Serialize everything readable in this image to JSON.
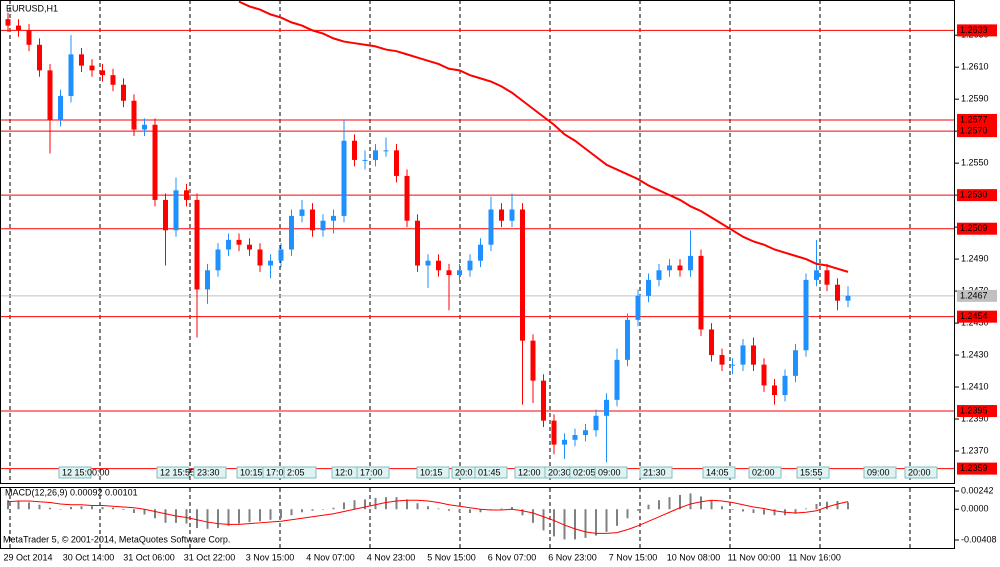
{
  "chart_data": [
    {
      "type": "candlestick",
      "title": "EURUSD,H1",
      "up_color": "#1e90ff",
      "down_color": "#ff0000",
      "ylim": [
        1.235,
        1.2652
      ],
      "yticks": [
        {
          "value": 1.237,
          "label": "1.2370"
        },
        {
          "value": 1.239,
          "label": "1.2390"
        },
        {
          "value": 1.241,
          "label": "1.2410"
        },
        {
          "value": 1.243,
          "label": "1.2430"
        },
        {
          "value": 1.245,
          "label": "1.2450"
        },
        {
          "value": 1.247,
          "label": "1.2470"
        },
        {
          "value": 1.249,
          "label": "1.2490"
        },
        {
          "value": 1.251,
          "label": "1.2510"
        },
        {
          "value": 1.253,
          "label": "1.2530"
        },
        {
          "value": 1.255,
          "label": "1.2550"
        },
        {
          "value": 1.257,
          "label": "1.2570"
        },
        {
          "value": 1.259,
          "label": "1.2590"
        },
        {
          "value": 1.261,
          "label": "1.2610"
        },
        {
          "value": 1.263,
          "label": "1.2630"
        }
      ],
      "hlines": [
        1.2633,
        1.2577,
        {
          "value": 1.257,
          "label": "1.2570"
        },
        {
          "value": 1.253,
          "label": "1.2530"
        },
        1.2509,
        1.2454,
        1.2395,
        1.2359
      ],
      "hline_color": "#ff0000",
      "last_price": 1.2467,
      "time_labels": [
        "29 Oct 2014",
        "30 Oct 14:00",
        "31 Oct 06:00",
        "31 Oct 22:00",
        "3 Nov 15:00",
        "4 Nov 07:00",
        "4 Nov 23:00",
        "5 Nov 15:00",
        "6 Nov 07:00",
        "6 Nov 23:00",
        "7 Nov 15:00",
        "10 Nov 08:00",
        "11 Nov 00:00",
        "11 Nov 16:00"
      ],
      "object_labels": [
        "12 15:00:00",
        "12 15:55",
        "23:30",
        "10:15",
        "17:00",
        "2:05",
        "12:0",
        "17:00",
        "10:15",
        "20:0",
        "01:45",
        "12:00",
        "20:30",
        "02:05",
        "09:00",
        "21:30",
        "14:05",
        "02:00",
        "15:55",
        "09:00",
        "20:00"
      ],
      "open": [
        1.264,
        1.2636,
        1.2633,
        1.2624,
        1.2608,
        1.2577,
        1.2592,
        1.2618,
        1.2611,
        1.2608,
        1.2605,
        1.2599,
        1.2589,
        1.2571,
        1.2574,
        1.2527,
        1.2508,
        1.2533,
        1.2527,
        1.2471,
        1.2483,
        1.2496,
        1.2502,
        1.2499,
        1.2496,
        1.2486,
        1.2489,
        1.2496,
        1.2517,
        1.2521,
        1.2508,
        1.2514,
        1.2517,
        1.2564,
        1.2552,
        1.2552,
        1.2558,
        1.2558,
        1.2542,
        1.2514,
        1.2486,
        1.2489,
        1.2483,
        1.248,
        1.2483,
        1.2489,
        1.2499,
        1.2521,
        1.2514,
        1.2521,
        1.2439,
        1.2414,
        1.2389,
        1.2374,
        1.2377,
        1.238,
        1.2383,
        1.2392,
        1.2402,
        1.2427,
        1.2452,
        1.2467,
        1.2477,
        1.2483,
        1.2486,
        1.2483,
        1.2492,
        1.2446,
        1.243,
        1.2424,
        1.2424,
        1.2436,
        1.2424,
        1.2411,
        1.2405,
        1.2417,
        1.2433,
        1.2477,
        1.2483,
        1.2474,
        1.2464
      ],
      "high": [
        1.2644,
        1.264,
        1.2637,
        1.2628,
        1.2612,
        1.2596,
        1.263,
        1.2622,
        1.2615,
        1.2612,
        1.2609,
        1.2603,
        1.2593,
        1.2578,
        1.2578,
        1.2531,
        1.2541,
        1.2537,
        1.2531,
        1.2487,
        1.25,
        1.2506,
        1.2506,
        1.2503,
        1.25,
        1.2493,
        1.25,
        1.2521,
        1.2527,
        1.2525,
        1.2518,
        1.2521,
        1.2577,
        1.2568,
        1.2558,
        1.2562,
        1.2566,
        1.2562,
        1.2546,
        1.2518,
        1.2493,
        1.2493,
        1.2487,
        1.2487,
        1.2493,
        1.2503,
        1.2529,
        1.2525,
        1.2531,
        1.2525,
        1.2443,
        1.2418,
        1.2393,
        1.2381,
        1.2384,
        1.2387,
        1.2396,
        1.2406,
        1.2434,
        1.2456,
        1.2471,
        1.2481,
        1.2487,
        1.249,
        1.249,
        1.2508,
        1.2496,
        1.245,
        1.2434,
        1.2428,
        1.244,
        1.2441,
        1.2428,
        1.2415,
        1.2421,
        1.2437,
        1.2481,
        1.2502,
        1.2487,
        1.2478,
        1.2473
      ],
      "low": [
        1.2632,
        1.2629,
        1.262,
        1.2604,
        1.2556,
        1.2573,
        1.2588,
        1.2607,
        1.2604,
        1.2601,
        1.2595,
        1.2585,
        1.2567,
        1.2567,
        1.2523,
        1.2486,
        1.2504,
        1.2523,
        1.2441,
        1.2462,
        1.2479,
        1.2492,
        1.2495,
        1.2492,
        1.2482,
        1.2478,
        1.2485,
        1.2492,
        1.2513,
        1.2504,
        1.2504,
        1.2506,
        1.2513,
        1.2548,
        1.2546,
        1.2548,
        1.2554,
        1.2538,
        1.251,
        1.2482,
        1.2472,
        1.2479,
        1.2458,
        1.2476,
        1.2479,
        1.2485,
        1.2495,
        1.251,
        1.251,
        1.2399,
        1.24,
        1.2385,
        1.2368,
        1.2365,
        1.2373,
        1.2376,
        1.2379,
        1.2363,
        1.2398,
        1.2423,
        1.2448,
        1.2463,
        1.2473,
        1.2479,
        1.2479,
        1.2479,
        1.2442,
        1.2426,
        1.242,
        1.2418,
        1.242,
        1.242,
        1.2407,
        1.2399,
        1.2401,
        1.2413,
        1.2429,
        1.2473,
        1.247,
        1.2458,
        1.246
      ],
      "close": [
        1.2636,
        1.2633,
        1.2624,
        1.2608,
        1.2577,
        1.2592,
        1.2618,
        1.2611,
        1.2608,
        1.2605,
        1.2599,
        1.2589,
        1.2571,
        1.2574,
        1.2527,
        1.2508,
        1.2533,
        1.2527,
        1.2471,
        1.2483,
        1.2496,
        1.2502,
        1.2499,
        1.2496,
        1.2486,
        1.2489,
        1.2496,
        1.2517,
        1.2521,
        1.2508,
        1.2514,
        1.2517,
        1.2564,
        1.2552,
        1.2552,
        1.2558,
        1.2558,
        1.2542,
        1.2514,
        1.2486,
        1.2489,
        1.2483,
        1.248,
        1.2483,
        1.2489,
        1.2499,
        1.2521,
        1.2514,
        1.2521,
        1.2439,
        1.2414,
        1.2389,
        1.2374,
        1.2377,
        1.238,
        1.2383,
        1.2392,
        1.2402,
        1.2427,
        1.2452,
        1.2467,
        1.2477,
        1.2483,
        1.2486,
        1.2483,
        1.2492,
        1.2446,
        1.243,
        1.2424,
        1.2424,
        1.2436,
        1.2424,
        1.2411,
        1.2405,
        1.2417,
        1.2433,
        1.2477,
        1.2483,
        1.2474,
        1.2464,
        1.2467
      ],
      "ma": {
        "color": "#ff0000",
        "values": [
          null,
          null,
          null,
          null,
          null,
          null,
          null,
          null,
          null,
          null,
          null,
          null,
          null,
          null,
          null,
          null,
          null,
          null,
          null,
          null,
          null,
          null,
          1.2651,
          1.2648,
          1.2646,
          1.2643,
          1.2641,
          1.2638,
          1.2636,
          1.2633,
          1.2631,
          1.2628,
          1.2626,
          1.2625,
          1.2624,
          1.2623,
          1.2621,
          1.262,
          1.2618,
          1.2616,
          1.2614,
          1.2612,
          1.2609,
          1.2608,
          1.2605,
          1.2603,
          1.2601,
          1.2598,
          1.2594,
          1.2589,
          1.2584,
          1.2579,
          1.2574,
          1.2568,
          1.2564,
          1.2559,
          1.2554,
          1.2549,
          1.2546,
          1.2543,
          1.254,
          1.2536,
          1.2533,
          1.253,
          1.2527,
          1.2523,
          1.252,
          1.2516,
          1.2512,
          1.2508,
          1.2504,
          1.2501,
          1.2499,
          1.2496,
          1.2494,
          1.2492,
          1.249,
          1.2487,
          1.2486,
          1.2484,
          1.2482
        ]
      }
    },
    {
      "type": "macd",
      "title": "MACD(12,26,9) 0.00092 0.00101",
      "ylim": [
        -0.00408,
        0.00242
      ],
      "yticks": [
        0.00242,
        {
          "value": 0,
          "label": "0.0000"
        },
        -0.00408
      ],
      "histogram_color": "#808080",
      "signal_color": "#ff0000",
      "histogram": [
        0.0012,
        0.0011,
        0.0009,
        0.0006,
        0.0002,
        0.0,
        0.0003,
        0.0004,
        0.0004,
        0.0003,
        0.0002,
        -0.0001,
        -0.0005,
        -0.0007,
        -0.0012,
        -0.0018,
        -0.0018,
        -0.0019,
        -0.0025,
        -0.0026,
        -0.0025,
        -0.0022,
        -0.0019,
        -0.0017,
        -0.0016,
        -0.0014,
        -0.0012,
        -0.0008,
        -0.0004,
        -0.0002,
        0.0,
        0.0002,
        0.0009,
        0.0012,
        0.0013,
        0.0015,
        0.0016,
        0.0016,
        0.0013,
        0.0008,
        0.0004,
        0.0001,
        -0.0002,
        -0.0004,
        -0.0005,
        -0.0004,
        -0.0001,
        0.0001,
        0.0003,
        -0.0008,
        -0.0018,
        -0.0028,
        -0.0036,
        -0.004,
        -0.004,
        -0.0038,
        -0.0035,
        -0.003,
        -0.0022,
        -0.0012,
        -0.0002,
        0.0006,
        0.0012,
        0.0016,
        0.0019,
        0.0021,
        0.0017,
        0.0011,
        0.0004,
        -0.0001,
        -0.0003,
        -0.0005,
        -0.0007,
        -0.0008,
        -0.0008,
        -0.0006,
        0.0001,
        0.0007,
        0.001,
        0.0011,
        0.00092
      ],
      "signal": [
        0.001,
        0.0011,
        0.0011,
        0.001,
        0.0009,
        0.0007,
        0.0006,
        0.0006,
        0.0005,
        0.0005,
        0.0004,
        0.0003,
        0.0002,
        0.0,
        -0.0003,
        -0.0006,
        -0.0009,
        -0.0011,
        -0.0014,
        -0.0017,
        -0.0019,
        -0.002,
        -0.002,
        -0.0019,
        -0.0018,
        -0.0017,
        -0.0016,
        -0.0014,
        -0.0012,
        -0.001,
        -0.0008,
        -0.0006,
        -0.0003,
        0.0,
        0.0003,
        0.0006,
        0.0009,
        0.0011,
        0.0012,
        0.0012,
        0.0011,
        0.0009,
        0.0006,
        0.0004,
        0.0002,
        0.0,
        -0.0001,
        -0.0001,
        0.0,
        -0.0002,
        -0.0005,
        -0.001,
        -0.0015,
        -0.0021,
        -0.0026,
        -0.003,
        -0.0032,
        -0.0032,
        -0.0031,
        -0.0027,
        -0.0022,
        -0.0016,
        -0.001,
        -0.0004,
        0.0002,
        0.0007,
        0.001,
        0.0012,
        0.0011,
        0.0009,
        0.0006,
        0.0003,
        0.0001,
        -0.0002,
        -0.0004,
        -0.0005,
        -0.0004,
        -0.0002,
        0.0003,
        0.0007,
        0.00101
      ],
      "watermark": "MetaTrader 5, © 2001-2014, MetaQuotes Software Corp."
    }
  ]
}
